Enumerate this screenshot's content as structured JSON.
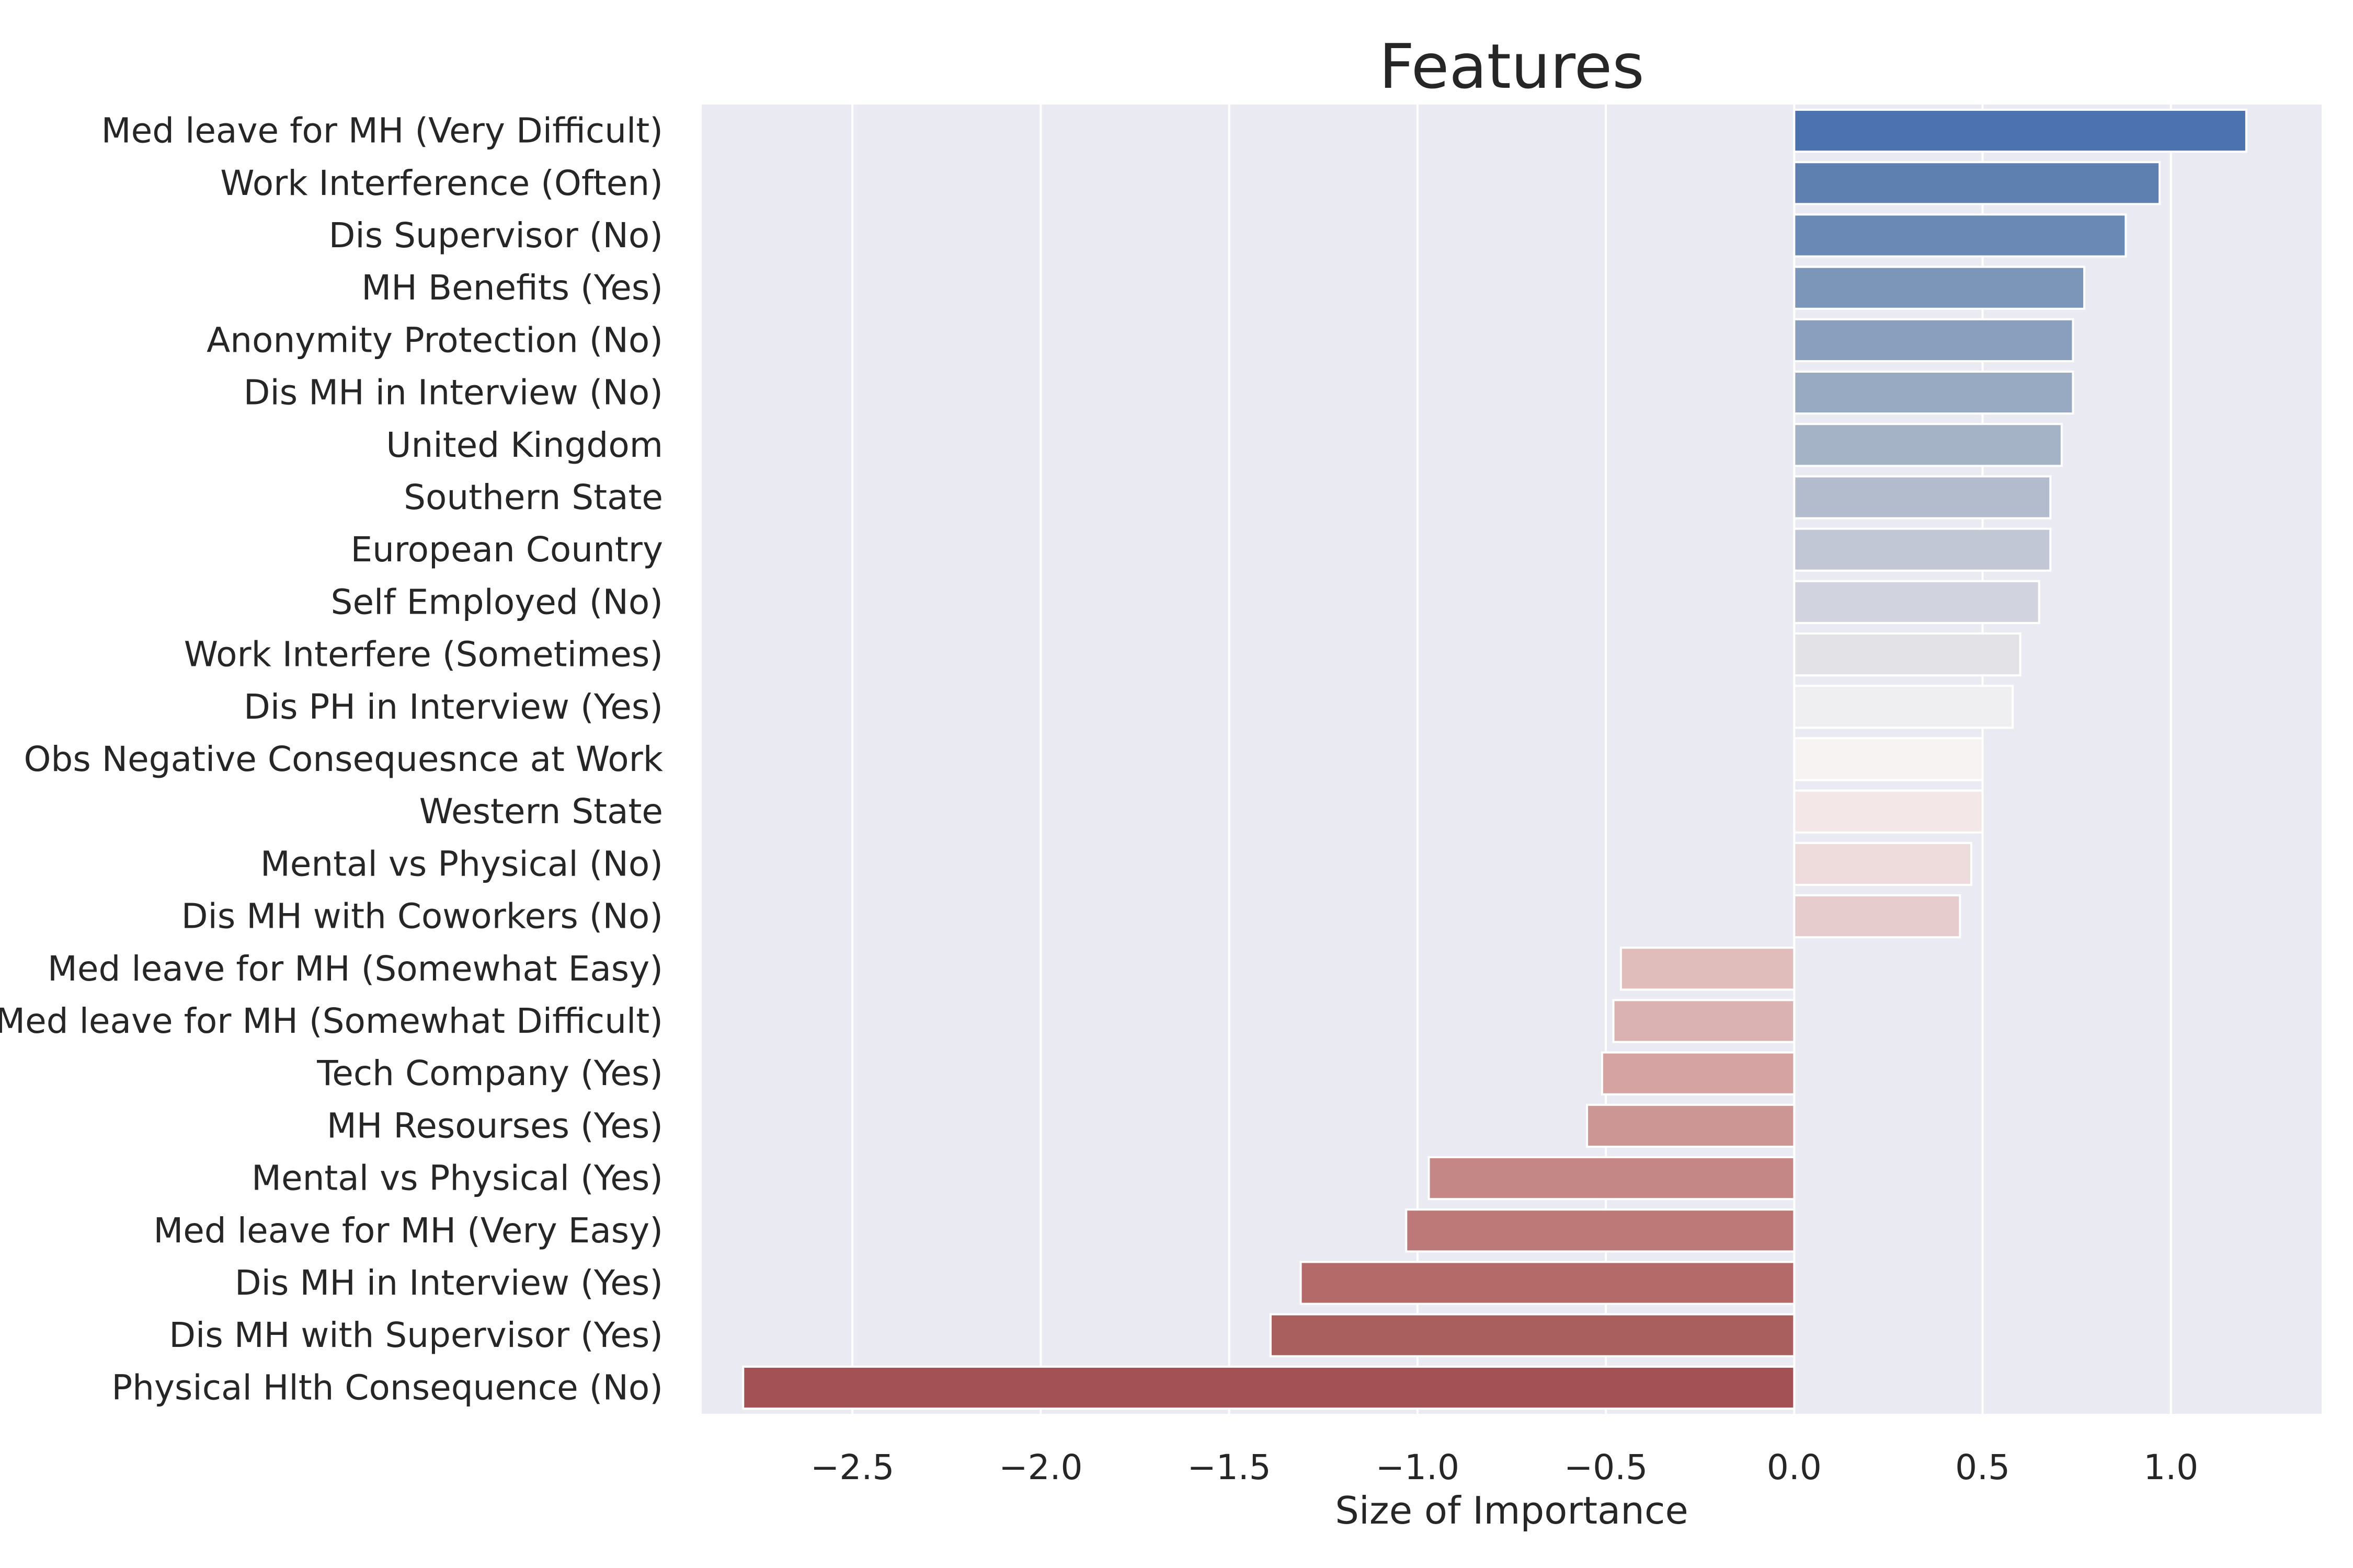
{
  "chart_data": {
    "type": "bar",
    "orientation": "horizontal",
    "title": "Features",
    "xlabel": "Size of Importance",
    "ylabel": "",
    "xlim": [
      -2.9,
      1.4
    ],
    "xticks": [
      -2.5,
      -2.0,
      -1.5,
      -1.0,
      -0.5,
      0.0,
      0.5,
      1.0
    ],
    "xtick_labels": [
      "−2.5",
      "−2.0",
      "−1.5",
      "−1.0",
      "−0.5",
      "0.0",
      "0.5",
      "1.0"
    ],
    "grid": "vertical",
    "categories": [
      "Med leave for MH (Very Difficult)",
      "Work Interference (Often)",
      "Dis Supervisor (No)",
      "MH Benefits (Yes)",
      "Anonymity Protection (No)",
      "Dis MH in Interview (No)",
      "United Kingdom",
      "Southern State",
      "European Country",
      "Self Employed (No)",
      "Work Interfere (Sometimes)",
      "Dis PH in Interview (Yes)",
      "Obs Negative Consequesnce at Work",
      "Western State",
      "Mental vs Physical (No)",
      "Dis MH with Coworkers (No)",
      "Med leave for MH (Somewhat Easy)",
      "Med leave for MH (Somewhat Difficult)",
      "Tech Company (Yes)",
      "MH Resourses (Yes)",
      "Mental vs Physical (Yes)",
      "Med leave for MH (Very Easy)",
      "Dis MH in Interview (Yes)",
      "Dis MH with Supervisor (Yes)",
      "Physical Hlth Consequence (No)"
    ],
    "values": [
      1.2,
      0.97,
      0.88,
      0.77,
      0.74,
      0.74,
      0.71,
      0.68,
      0.68,
      0.65,
      0.6,
      0.58,
      0.5,
      0.5,
      0.47,
      0.44,
      -0.46,
      -0.48,
      -0.51,
      -0.55,
      -0.97,
      -1.03,
      -1.31,
      -1.39,
      -2.79
    ],
    "colors": [
      "#4c72b0",
      "#5d80b1",
      "#6a8ab5",
      "#7c96b9",
      "#8a9fbd",
      "#98a9c2",
      "#a5b3c7",
      "#b3bccd",
      "#c1c7d5",
      "#d1d3de",
      "#e2e2e7",
      "#efeef0",
      "#f8f3f3",
      "#f4e7e7",
      "#eedcdc",
      "#e6cccc",
      "#e0bcbb",
      "#dab2b1",
      "#d4a3a2",
      "#cc9695",
      "#c48786",
      "#bc7977",
      "#b36a69",
      "#aa5f5f",
      "#a35155"
    ],
    "plot_background": "#eaeaf2",
    "grid_color": "#ffffff"
  }
}
